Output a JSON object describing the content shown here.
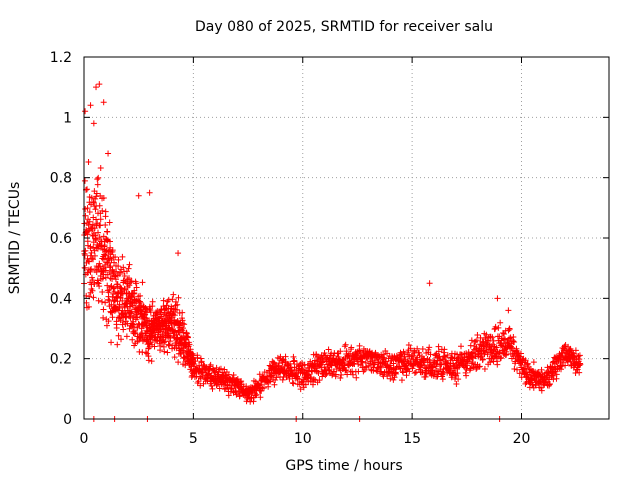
{
  "chart_data": {
    "type": "scatter",
    "title": "Day 080 of 2025, SRMTID for receiver salu",
    "xlabel": "GPS time / hours",
    "ylabel": "SRMTID / TECUs",
    "xlim": [
      0,
      24
    ],
    "ylim": [
      0,
      1.2
    ],
    "x_ticks": [
      0,
      5,
      10,
      15,
      20
    ],
    "x_tick_labels": [
      "0",
      "5",
      "10",
      "15",
      "20"
    ],
    "y_ticks": [
      0,
      0.2,
      0.4,
      0.6,
      0.8,
      1.0,
      1.2
    ],
    "y_tick_labels": [
      "0",
      "0.2",
      "0.4",
      "0.6",
      "0.8",
      "1",
      "1.2"
    ],
    "grid": true,
    "marker": "+",
    "color": "#ff0000",
    "trend": [
      [
        0.0,
        0.55,
        0.22
      ],
      [
        0.3,
        0.62,
        0.24
      ],
      [
        0.6,
        0.6,
        0.24
      ],
      [
        1.0,
        0.52,
        0.24
      ],
      [
        1.5,
        0.42,
        0.18
      ],
      [
        2.0,
        0.38,
        0.14
      ],
      [
        2.5,
        0.34,
        0.12
      ],
      [
        3.0,
        0.3,
        0.1
      ],
      [
        3.5,
        0.3,
        0.08
      ],
      [
        4.0,
        0.32,
        0.1
      ],
      [
        4.5,
        0.28,
        0.1
      ],
      [
        5.0,
        0.17,
        0.05
      ],
      [
        6.0,
        0.14,
        0.04
      ],
      [
        7.0,
        0.11,
        0.04
      ],
      [
        7.5,
        0.08,
        0.03
      ],
      [
        8.0,
        0.11,
        0.04
      ],
      [
        9.0,
        0.17,
        0.05
      ],
      [
        10.0,
        0.15,
        0.05
      ],
      [
        11.0,
        0.18,
        0.05
      ],
      [
        12.0,
        0.19,
        0.05
      ],
      [
        13.0,
        0.2,
        0.05
      ],
      [
        14.0,
        0.17,
        0.05
      ],
      [
        15.0,
        0.2,
        0.06
      ],
      [
        16.0,
        0.18,
        0.06
      ],
      [
        17.0,
        0.18,
        0.06
      ],
      [
        18.0,
        0.22,
        0.06
      ],
      [
        19.0,
        0.24,
        0.07
      ],
      [
        19.5,
        0.26,
        0.07
      ],
      [
        20.0,
        0.17,
        0.05
      ],
      [
        21.0,
        0.12,
        0.04
      ],
      [
        22.0,
        0.22,
        0.05
      ],
      [
        22.7,
        0.17,
        0.04
      ]
    ],
    "sample_interval_hours": 0.012,
    "outliers": [
      [
        0.05,
        1.02
      ],
      [
        0.3,
        1.04
      ],
      [
        0.55,
        1.1
      ],
      [
        0.7,
        1.11
      ],
      [
        0.9,
        1.05
      ],
      [
        0.45,
        0.98
      ],
      [
        1.1,
        0.88
      ],
      [
        2.5,
        0.74
      ],
      [
        3.0,
        0.75
      ],
      [
        4.3,
        0.55
      ],
      [
        15.8,
        0.45
      ],
      [
        18.9,
        0.4
      ],
      [
        19.4,
        0.36
      ]
    ],
    "zero_points": [
      0.45,
      1.4,
      2.9,
      9.7,
      12.6,
      19.0
    ]
  }
}
